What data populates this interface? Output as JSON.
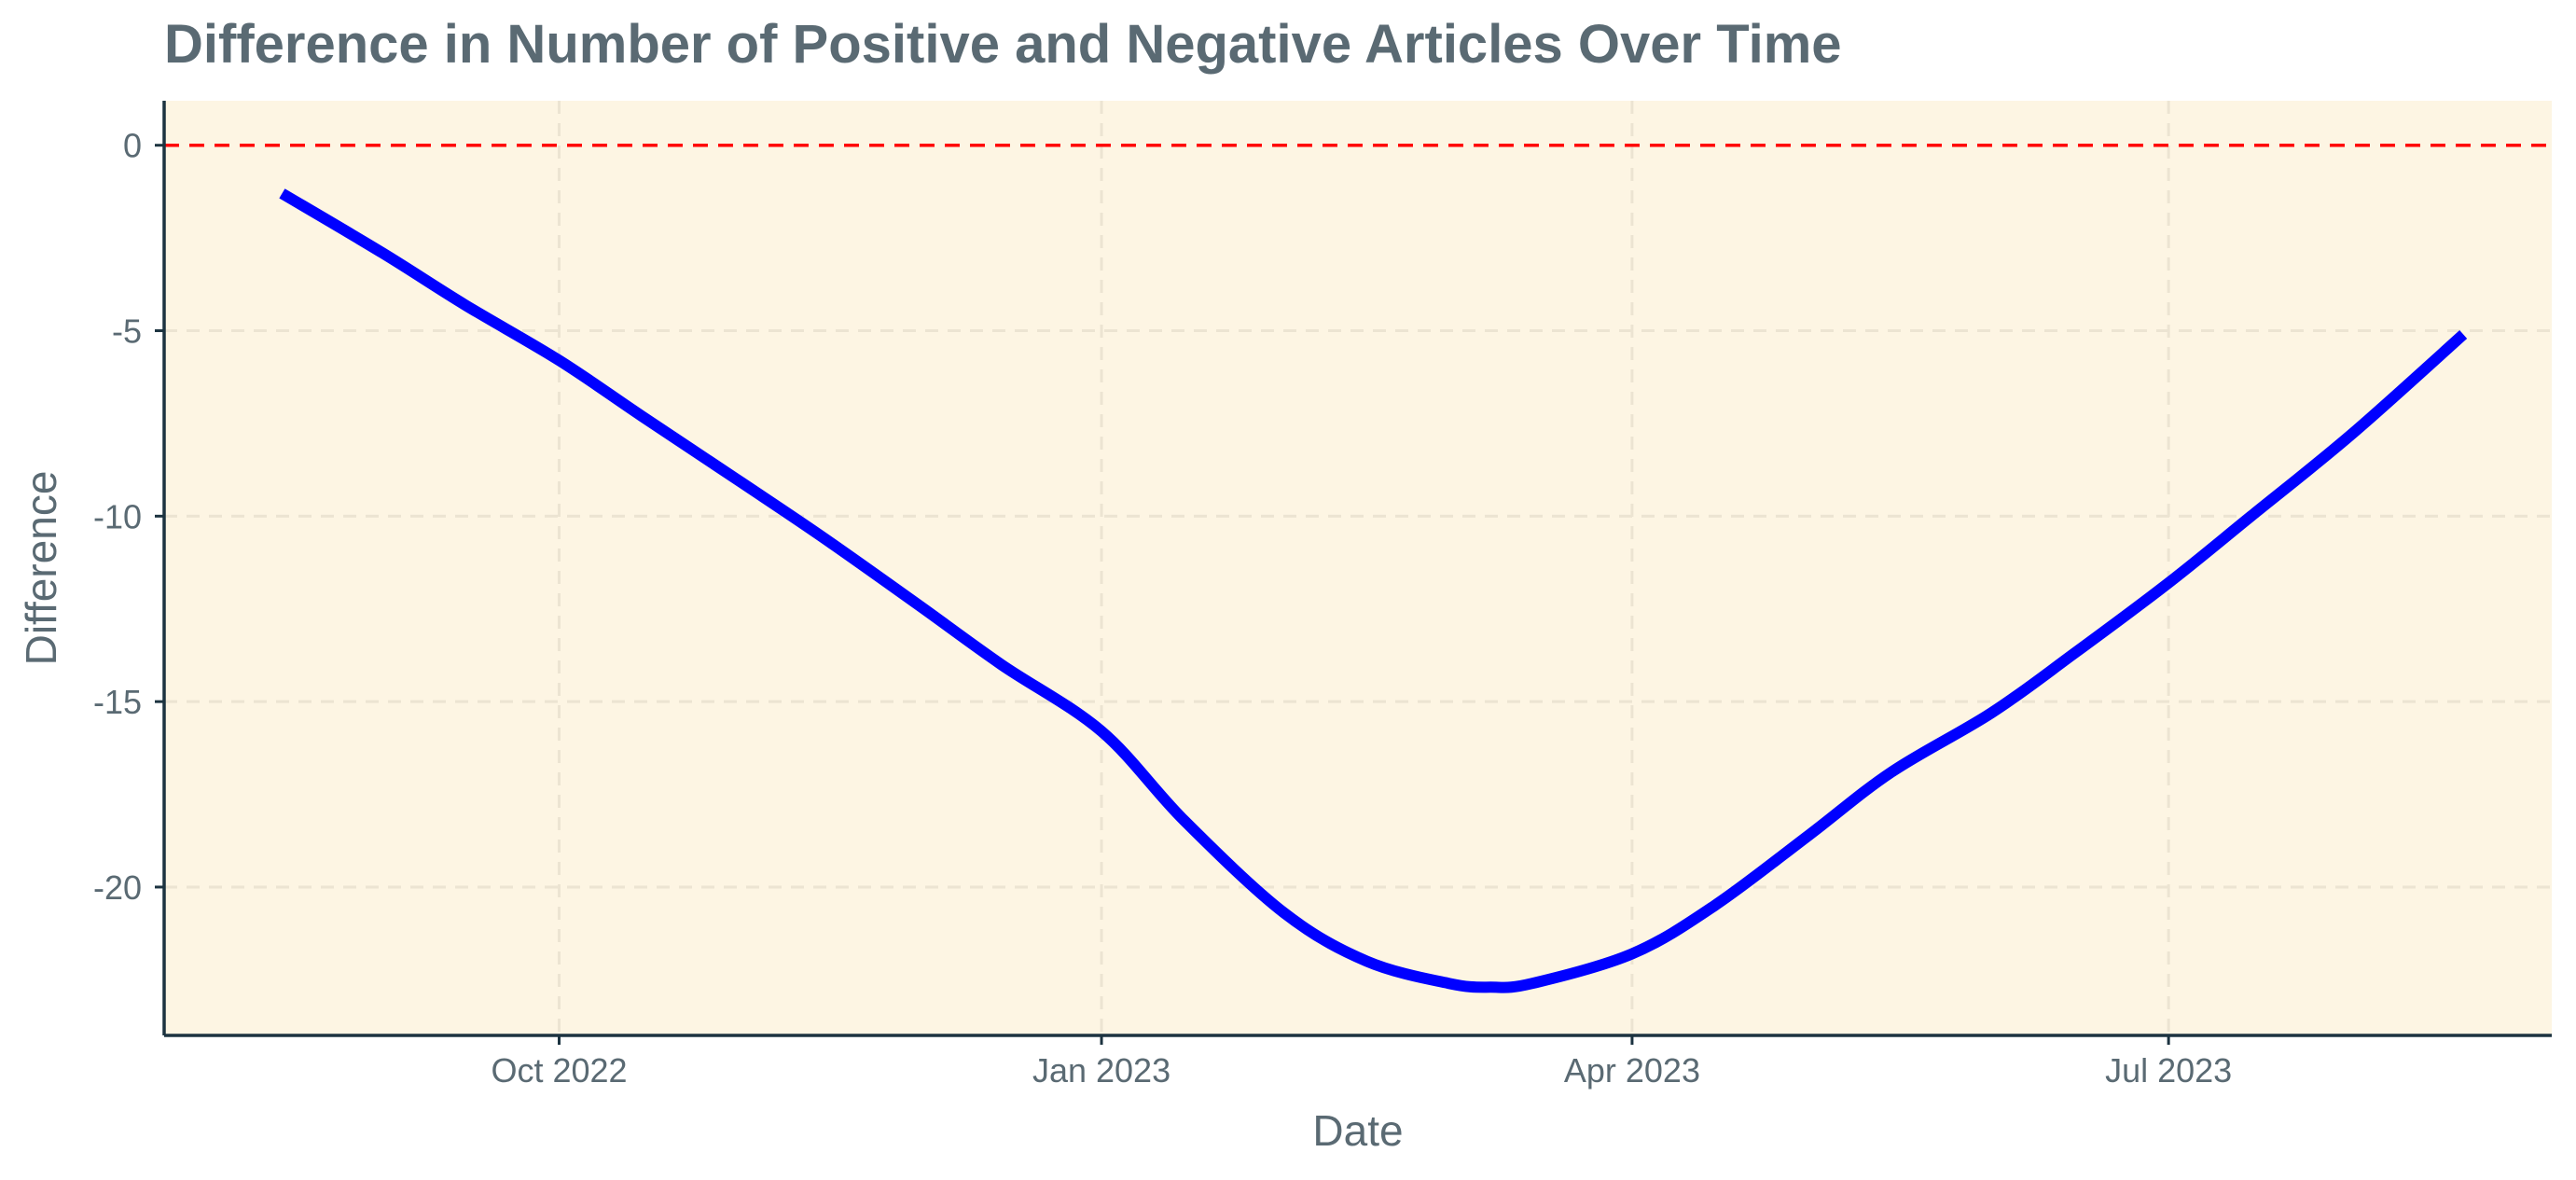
{
  "chart_data": {
    "type": "line",
    "title": "Difference in Number of Positive and Negative Articles Over Time",
    "xlabel": "Date",
    "ylabel": "Difference",
    "x_axis_type": "date",
    "xlim": [
      "2022-07-26",
      "2023-09-04"
    ],
    "ylim": [
      -24,
      1.2
    ],
    "x_ticks": [
      {
        "value": "2022-10-01",
        "label": "Oct 2022"
      },
      {
        "value": "2023-01-01",
        "label": "Jan 2023"
      },
      {
        "value": "2023-04-01",
        "label": "Apr 2023"
      },
      {
        "value": "2023-07-01",
        "label": "Jul 2023"
      }
    ],
    "y_ticks": [
      {
        "value": 0,
        "label": "0"
      },
      {
        "value": -5,
        "label": "-5"
      },
      {
        "value": -10,
        "label": "-10"
      },
      {
        "value": -15,
        "label": "-15"
      },
      {
        "value": -20,
        "label": "-20"
      }
    ],
    "grid": true,
    "reference_line": {
      "y": 0,
      "color": "#ff0000",
      "style": "dashed"
    },
    "series": [
      {
        "color": "#0000ff",
        "points": [
          {
            "x": "2022-08-15",
            "y": -1.3
          },
          {
            "x": "2022-09-01",
            "y": -2.9
          },
          {
            "x": "2022-09-15",
            "y": -4.3
          },
          {
            "x": "2022-10-01",
            "y": -5.8
          },
          {
            "x": "2022-10-15",
            "y": -7.3
          },
          {
            "x": "2022-11-01",
            "y": -9.1
          },
          {
            "x": "2022-11-15",
            "y": -10.6
          },
          {
            "x": "2022-12-01",
            "y": -12.4
          },
          {
            "x": "2022-12-15",
            "y": -14.0
          },
          {
            "x": "2023-01-01",
            "y": -15.8
          },
          {
            "x": "2023-01-15",
            "y": -18.2
          },
          {
            "x": "2023-02-01",
            "y": -20.7
          },
          {
            "x": "2023-02-15",
            "y": -22.0
          },
          {
            "x": "2023-03-01",
            "y": -22.6
          },
          {
            "x": "2023-03-08",
            "y": -22.7
          },
          {
            "x": "2023-03-15",
            "y": -22.6
          },
          {
            "x": "2023-04-01",
            "y": -21.8
          },
          {
            "x": "2023-04-15",
            "y": -20.5
          },
          {
            "x": "2023-05-01",
            "y": -18.6
          },
          {
            "x": "2023-05-15",
            "y": -16.9
          },
          {
            "x": "2023-06-01",
            "y": -15.3
          },
          {
            "x": "2023-06-15",
            "y": -13.7
          },
          {
            "x": "2023-07-01",
            "y": -11.8
          },
          {
            "x": "2023-07-15",
            "y": -10.0
          },
          {
            "x": "2023-08-01",
            "y": -7.8
          },
          {
            "x": "2023-08-20",
            "y": -5.1
          }
        ]
      }
    ],
    "colors": {
      "panel_background": "#fdf5e3",
      "grid": "#ece4d2",
      "axis": "#1c3340",
      "text": "#5a6a73"
    }
  }
}
